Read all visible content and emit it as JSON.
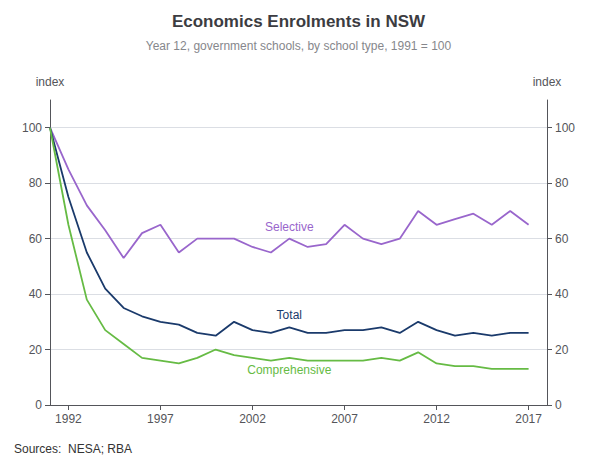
{
  "chart_data": {
    "type": "line",
    "title": "Economics Enrolments in NSW",
    "subtitle": "Year 12, government schools, by school type, 1991 = 100",
    "ylabel": "index",
    "y2label": "index",
    "source": "Sources:  NESA; RBA",
    "x": [
      1991,
      1992,
      1993,
      1994,
      1995,
      1996,
      1997,
      1998,
      1999,
      2000,
      2001,
      2002,
      2003,
      2004,
      2005,
      2006,
      2007,
      2008,
      2009,
      2010,
      2011,
      2012,
      2013,
      2014,
      2015,
      2016,
      2017
    ],
    "series": [
      {
        "name": "Selective",
        "color": "#9966cc",
        "values": [
          100,
          85,
          72,
          63,
          53,
          62,
          65,
          55,
          60,
          60,
          60,
          57,
          55,
          60,
          57,
          58,
          65,
          60,
          58,
          60,
          70,
          65,
          67,
          69,
          65,
          70,
          65
        ]
      },
      {
        "name": "Total",
        "color": "#1a3a6b",
        "values": [
          100,
          75,
          55,
          42,
          35,
          32,
          30,
          29,
          26,
          25,
          30,
          27,
          26,
          28,
          26,
          26,
          27,
          27,
          28,
          26,
          30,
          27,
          25,
          26,
          25,
          26,
          26
        ]
      },
      {
        "name": "Comprehensive",
        "color": "#66bb44",
        "values": [
          100,
          65,
          38,
          27,
          22,
          17,
          16,
          15,
          17,
          20,
          18,
          17,
          16,
          17,
          16,
          16,
          16,
          16,
          17,
          16,
          19,
          15,
          14,
          14,
          13,
          13,
          13
        ]
      }
    ],
    "xlim": [
      1991,
      2018
    ],
    "xticks": [
      1992,
      1997,
      2002,
      2007,
      2012,
      2017
    ],
    "ylim": [
      0,
      110
    ],
    "yticks": [
      0,
      20,
      40,
      60,
      80,
      100
    ],
    "y2lim": [
      0,
      110
    ],
    "y2ticks": [
      0,
      20,
      40,
      60,
      80,
      100
    ],
    "grid": true
  }
}
